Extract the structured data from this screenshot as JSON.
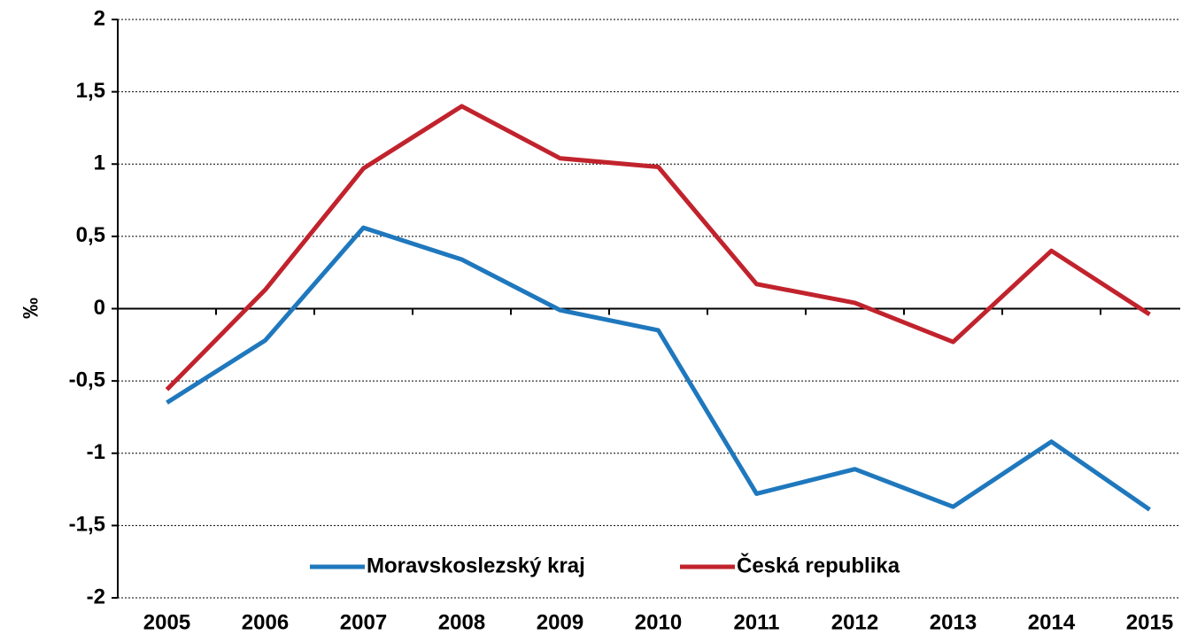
{
  "chart_data": {
    "type": "line",
    "y_label": "‰",
    "categories": [
      "2005",
      "2006",
      "2007",
      "2008",
      "2009",
      "2010",
      "2011",
      "2012",
      "2013",
      "2014",
      "2015"
    ],
    "series": [
      {
        "name": "Moravskoslezský kraj",
        "color": "#1f78bd",
        "values": [
          -0.65,
          -0.22,
          0.56,
          0.34,
          -0.01,
          -0.15,
          -1.28,
          -1.11,
          -1.37,
          -0.92,
          -1.39
        ]
      },
      {
        "name": "Česká republika",
        "color": "#c1232d",
        "values": [
          -0.56,
          0.13,
          0.97,
          1.4,
          1.04,
          0.98,
          0.17,
          0.04,
          -0.23,
          0.4,
          -0.04
        ]
      }
    ],
    "ylim": [
      -2,
      2
    ],
    "yticks": [
      -2,
      {
        "value": -1.5,
        "label": "-1,5"
      },
      -1,
      {
        "value": -0.5,
        "label": "-0,5"
      },
      0,
      {
        "value": 0.5,
        "label": "0,5"
      },
      1,
      {
        "value": 1.5,
        "label": "1,5"
      },
      2
    ],
    "grid": true,
    "legend": "bottom"
  }
}
